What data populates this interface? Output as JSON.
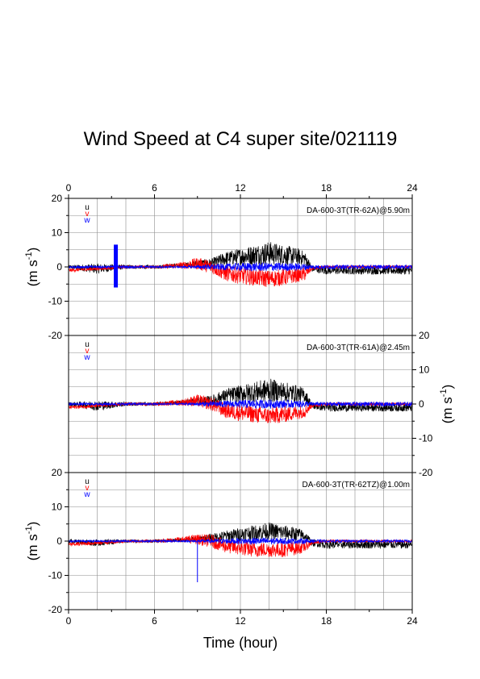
{
  "figure": {
    "title": "Wind Speed at C4 super site/021119",
    "x_axis_label": "Time (hour)",
    "y_axis_label_main": "(m s",
    "y_axis_label_sup": "-1",
    "y_axis_label_close": ")"
  },
  "legend": {
    "entries": [
      {
        "label": "u",
        "color": "#000000"
      },
      {
        "label": "v",
        "color": "#ff0000"
      },
      {
        "label": "w",
        "color": "#0000ff"
      }
    ]
  },
  "chart_data": [
    {
      "type": "line",
      "panel": "top",
      "annotation": "DA-600-3T(TR-62A)@5.90m",
      "xlim": [
        0,
        24
      ],
      "ylim": [
        -20,
        20
      ],
      "x_ticks": [
        "0",
        "6",
        "12",
        "18",
        "24"
      ],
      "y_ticks": [
        "20",
        "10",
        "0",
        "-10",
        "-20"
      ],
      "y_axis_side": "left",
      "grid": true,
      "series": [
        {
          "name": "u",
          "color": "#000000",
          "x": [
            0,
            2,
            4,
            6,
            8,
            9,
            10,
            11,
            12,
            13,
            14,
            15,
            16,
            16.5,
            17,
            18,
            20,
            22,
            24
          ],
          "y": [
            0,
            -0.5,
            0,
            0,
            0.5,
            1,
            1,
            2.5,
            3,
            3.5,
            4,
            3.5,
            3,
            2.5,
            -0.5,
            -1,
            -1,
            -1,
            -1
          ],
          "y_spread": [
            0.5,
            1.5,
            0.6,
            0.5,
            0.6,
            1,
            1.5,
            2,
            2.5,
            3,
            3.5,
            3,
            2.5,
            2,
            1,
            1.2,
            1.2,
            1.2,
            1.2
          ]
        },
        {
          "name": "v",
          "color": "#ff0000",
          "x": [
            0,
            2,
            4,
            6,
            8,
            9,
            10,
            11,
            12,
            13,
            14,
            15,
            16,
            16.5,
            17,
            18,
            20,
            22,
            24
          ],
          "y": [
            -1,
            -0.5,
            0,
            0,
            0.5,
            1,
            0,
            -2,
            -2.5,
            -3,
            -3.5,
            -3,
            -2.5,
            -2,
            -0.5,
            0,
            0,
            0,
            0
          ],
          "y_spread": [
            0.5,
            0.5,
            0.4,
            0.4,
            1,
            1.8,
            2,
            2.2,
            2.5,
            2.5,
            2.5,
            2.5,
            2,
            2,
            0.5,
            0.4,
            0.4,
            0.4,
            0.4
          ]
        },
        {
          "name": "w",
          "color": "#0000ff",
          "x": [
            0,
            2,
            4,
            6,
            8,
            9,
            10,
            11,
            12,
            13,
            14,
            15,
            16,
            16.5,
            17,
            18,
            20,
            22,
            24
          ],
          "y": [
            0,
            0,
            0,
            0,
            0,
            0,
            0,
            0,
            0,
            0,
            0,
            0,
            0,
            0,
            0,
            0,
            0,
            0,
            0
          ],
          "y_spread": [
            0.4,
            0.4,
            0.4,
            0.3,
            0.3,
            0.5,
            0.8,
            1,
            1.2,
            1.3,
            1.3,
            1.2,
            1.1,
            1,
            0.6,
            0.6,
            0.6,
            0.6,
            0.6
          ]
        }
      ],
      "spikes": [
        {
          "series": "w",
          "x": 3.3,
          "y_min": -6,
          "y_max": 6.5
        }
      ]
    },
    {
      "type": "line",
      "panel": "middle",
      "annotation": "DA-600-3T(TR-61A)@2.45m",
      "xlim": [
        0,
        24
      ],
      "ylim": [
        -20,
        20
      ],
      "x_ticks": [
        "0",
        "6",
        "12",
        "18",
        "24"
      ],
      "y_ticks": [
        "20",
        "10",
        "0",
        "-10",
        "-20"
      ],
      "y_axis_side": "right",
      "grid": true,
      "series": [
        {
          "name": "u",
          "color": "#000000",
          "x": [
            0,
            2,
            4,
            6,
            8,
            9,
            10,
            11,
            12,
            13,
            14,
            15,
            16,
            16.5,
            17,
            18,
            20,
            22,
            24
          ],
          "y": [
            0,
            -0.5,
            0,
            0,
            0.5,
            1,
            1,
            2.5,
            3,
            3.5,
            4,
            3.5,
            3,
            2.5,
            -0.5,
            -1,
            -1,
            -1,
            -1
          ],
          "y_spread": [
            0.5,
            1.5,
            0.6,
            0.5,
            0.6,
            1,
            1.5,
            2,
            2.5,
            3,
            3.5,
            3,
            2.5,
            2,
            1,
            1.2,
            1.2,
            1.2,
            1.2
          ]
        },
        {
          "name": "v",
          "color": "#ff0000",
          "x": [
            0,
            2,
            4,
            6,
            8,
            9,
            10,
            11,
            12,
            13,
            14,
            15,
            16,
            16.5,
            17,
            18,
            20,
            22,
            24
          ],
          "y": [
            -1,
            -0.5,
            0,
            0,
            0.5,
            1,
            0,
            -2,
            -2.5,
            -3,
            -3.5,
            -3,
            -2.5,
            -2,
            -0.5,
            0,
            0,
            0,
            0
          ],
          "y_spread": [
            0.5,
            0.5,
            0.4,
            0.4,
            1,
            1.8,
            2,
            2.2,
            2.5,
            2.5,
            2.5,
            2.5,
            2,
            2,
            0.5,
            0.4,
            0.4,
            0.4,
            0.4
          ]
        },
        {
          "name": "w",
          "color": "#0000ff",
          "x": [
            0,
            2,
            4,
            6,
            8,
            9,
            10,
            11,
            12,
            13,
            14,
            15,
            16,
            16.5,
            17,
            18,
            20,
            22,
            24
          ],
          "y": [
            0,
            0,
            0,
            0,
            0,
            0,
            0,
            0,
            0,
            0,
            0,
            0,
            0,
            0,
            0,
            0,
            0,
            0,
            0
          ],
          "y_spread": [
            0.4,
            0.4,
            0.4,
            0.3,
            0.3,
            0.5,
            0.8,
            1,
            1.2,
            1.3,
            1.3,
            1.2,
            1.1,
            1,
            0.6,
            0.6,
            0.6,
            0.6,
            0.6
          ]
        }
      ],
      "spikes": []
    },
    {
      "type": "line",
      "panel": "bottom",
      "annotation": "DA-600-3T(TR-62TZ)@1.00m",
      "xlim": [
        0,
        24
      ],
      "ylim": [
        -20,
        20
      ],
      "x_ticks": [
        "0",
        "6",
        "12",
        "18",
        "24"
      ],
      "y_ticks": [
        "20",
        "10",
        "0",
        "-10",
        "-20"
      ],
      "y_axis_side": "left",
      "grid": true,
      "series": [
        {
          "name": "u",
          "color": "#000000",
          "x": [
            0,
            2,
            4,
            6,
            8,
            9,
            10,
            11,
            12,
            13,
            14,
            15,
            16,
            16.5,
            17,
            18,
            20,
            22,
            24
          ],
          "y": [
            0,
            -0.5,
            0,
            0,
            0.3,
            0.6,
            1,
            1.5,
            2,
            2.5,
            3,
            2.5,
            2,
            1.5,
            -0.5,
            -1,
            -1,
            -1,
            -1
          ],
          "y_spread": [
            0.5,
            1,
            0.5,
            0.4,
            0.5,
            0.8,
            1.2,
            1.6,
            2,
            2.2,
            2.5,
            2.2,
            2,
            1.5,
            1,
            1.2,
            1.2,
            1.2,
            1.2
          ]
        },
        {
          "name": "v",
          "color": "#ff0000",
          "x": [
            0,
            2,
            4,
            6,
            8,
            9,
            10,
            11,
            12,
            13,
            14,
            15,
            16,
            16.5,
            17,
            18,
            20,
            22,
            24
          ],
          "y": [
            -1,
            -0.5,
            0,
            0,
            0.5,
            0.5,
            0,
            -1.5,
            -2,
            -2.5,
            -2.5,
            -2.5,
            -2,
            -1.5,
            -0.5,
            0,
            0,
            0,
            0
          ],
          "y_spread": [
            0.5,
            0.6,
            0.4,
            0.4,
            0.8,
            1.5,
            2,
            2,
            2.2,
            2.2,
            2.2,
            2.2,
            2,
            1.8,
            0.5,
            0.4,
            0.4,
            0.4,
            0.4
          ]
        },
        {
          "name": "w",
          "color": "#0000ff",
          "x": [
            0,
            2,
            4,
            6,
            8,
            9,
            10,
            11,
            12,
            13,
            14,
            15,
            16,
            16.5,
            17,
            18,
            20,
            22,
            24
          ],
          "y": [
            0,
            0,
            0,
            0,
            0,
            0,
            0,
            0,
            0,
            0,
            0,
            0,
            0,
            0,
            0,
            0,
            0,
            0,
            0
          ],
          "y_spread": [
            0.3,
            0.3,
            0.3,
            0.3,
            0.3,
            0.4,
            0.6,
            0.8,
            0.9,
            1,
            1,
            0.9,
            0.8,
            0.8,
            0.5,
            0.4,
            0.4,
            0.4,
            0.4
          ]
        }
      ],
      "spikes": [
        {
          "series": "w",
          "x": 9.0,
          "y_min": -12,
          "y_max": 0
        }
      ]
    }
  ]
}
